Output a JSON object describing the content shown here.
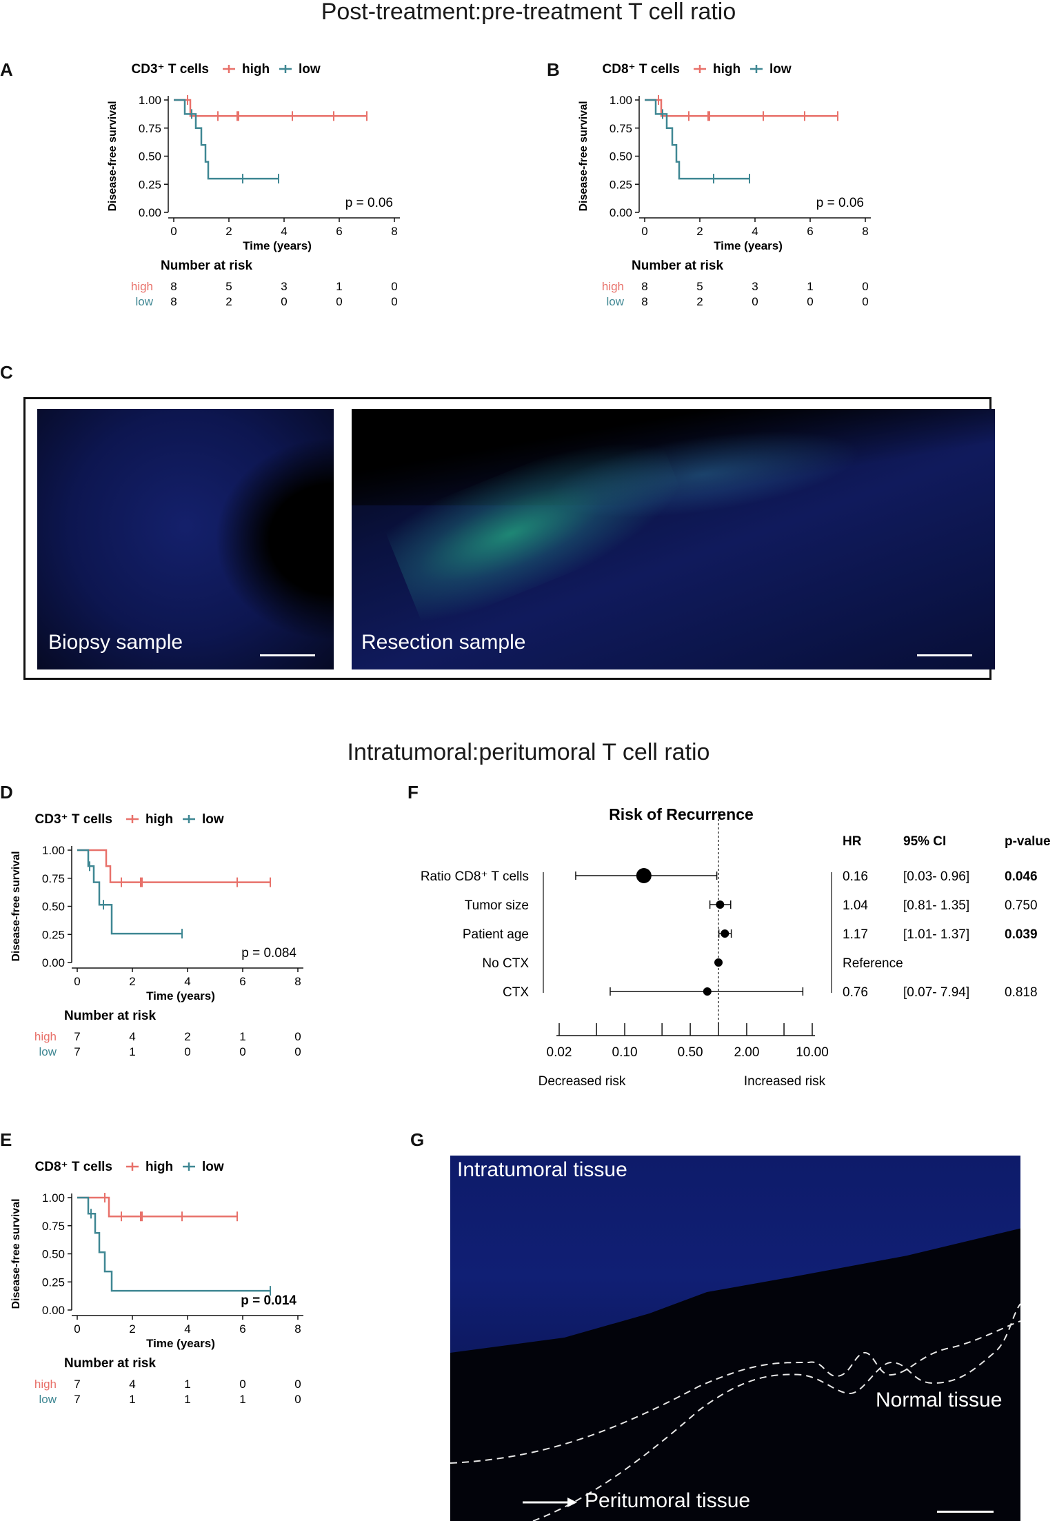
{
  "section_titles": {
    "top": "Post-treatment:pre-treatment T cell ratio",
    "middle": "Intratumoral:peritumoral T cell ratio"
  },
  "panel_labels": [
    "A",
    "B",
    "C",
    "D",
    "E",
    "F",
    "G"
  ],
  "colors": {
    "high": "#e8716a",
    "low": "#3f8793",
    "micro_bg": "#050814",
    "micro_blue": "#2a3fb8",
    "micro_green": "#2ee59a"
  },
  "micrographs": {
    "biopsy_label": "Biopsy sample",
    "resection_label": "Resection sample",
    "intratumoral_label": "Intratumoral tissue",
    "normal_label": "Normal tissue",
    "peritumoral_label": "Peritumoral tissue"
  },
  "chart_data": [
    {
      "id": "A",
      "type": "line",
      "legend_title": "CD3⁺ T cells",
      "legend_items": [
        "high",
        "low"
      ],
      "xlabel": "Time (years)",
      "ylabel": "Disease-free survival",
      "xlim": [
        0,
        8
      ],
      "ylim": [
        0,
        1
      ],
      "xticks": [
        "0",
        "2",
        "4",
        "6",
        "8"
      ],
      "yticks": [
        "0.00",
        "0.25",
        "0.50",
        "0.75",
        "1.00"
      ],
      "pvalue": "p = 0.06",
      "pvalue_bold": false,
      "series": [
        {
          "name": "high",
          "steps": [
            [
              0,
              1
            ],
            [
              0.6,
              1
            ],
            [
              0.6,
              0.857
            ],
            [
              7.0,
              0.857
            ]
          ],
          "censors": [
            [
              0.5,
              1
            ],
            [
              1.6,
              0.857
            ],
            [
              2.3,
              0.857
            ],
            [
              2.35,
              0.857
            ],
            [
              4.3,
              0.857
            ],
            [
              5.8,
              0.857
            ],
            [
              7.0,
              0.857
            ]
          ]
        },
        {
          "name": "low",
          "steps": [
            [
              0,
              1
            ],
            [
              0.4,
              1
            ],
            [
              0.4,
              0.875
            ],
            [
              0.8,
              0.875
            ],
            [
              0.8,
              0.75
            ],
            [
              1.0,
              0.75
            ],
            [
              1.0,
              0.6
            ],
            [
              1.15,
              0.6
            ],
            [
              1.15,
              0.45
            ],
            [
              1.25,
              0.45
            ],
            [
              1.25,
              0.3
            ],
            [
              3.8,
              0.3
            ]
          ],
          "censors": [
            [
              0.65,
              0.875
            ],
            [
              2.5,
              0.3
            ],
            [
              3.8,
              0.3
            ]
          ]
        }
      ],
      "risk_table": {
        "title": "Number at risk",
        "times": [
          0,
          2,
          4,
          6,
          8
        ],
        "rows": [
          {
            "name": "high",
            "values": [
              "8",
              "5",
              "3",
              "1",
              "0"
            ]
          },
          {
            "name": "low",
            "values": [
              "8",
              "2",
              "0",
              "0",
              "0"
            ]
          }
        ]
      }
    },
    {
      "id": "B",
      "type": "line",
      "legend_title": "CD8⁺ T cells",
      "legend_items": [
        "high",
        "low"
      ],
      "xlabel": "Time (years)",
      "ylabel": "Disease-free survival",
      "xlim": [
        0,
        8
      ],
      "ylim": [
        0,
        1
      ],
      "xticks": [
        "0",
        "2",
        "4",
        "6",
        "8"
      ],
      "yticks": [
        "0.00",
        "0.25",
        "0.50",
        "0.75",
        "1.00"
      ],
      "pvalue": "p = 0.06",
      "pvalue_bold": false,
      "series": [
        {
          "name": "high",
          "steps": [
            [
              0,
              1
            ],
            [
              0.6,
              1
            ],
            [
              0.6,
              0.857
            ],
            [
              7.0,
              0.857
            ]
          ],
          "censors": [
            [
              0.5,
              1
            ],
            [
              1.6,
              0.857
            ],
            [
              2.3,
              0.857
            ],
            [
              2.35,
              0.857
            ],
            [
              4.3,
              0.857
            ],
            [
              5.8,
              0.857
            ],
            [
              7.0,
              0.857
            ]
          ]
        },
        {
          "name": "low",
          "steps": [
            [
              0,
              1
            ],
            [
              0.4,
              1
            ],
            [
              0.4,
              0.875
            ],
            [
              0.8,
              0.875
            ],
            [
              0.8,
              0.75
            ],
            [
              1.0,
              0.75
            ],
            [
              1.0,
              0.6
            ],
            [
              1.15,
              0.6
            ],
            [
              1.15,
              0.45
            ],
            [
              1.25,
              0.45
            ],
            [
              1.25,
              0.3
            ],
            [
              3.8,
              0.3
            ]
          ],
          "censors": [
            [
              0.65,
              0.875
            ],
            [
              2.5,
              0.3
            ],
            [
              3.8,
              0.3
            ]
          ]
        }
      ],
      "risk_table": {
        "title": "Number at risk",
        "times": [
          0,
          2,
          4,
          6,
          8
        ],
        "rows": [
          {
            "name": "high",
            "values": [
              "8",
              "5",
              "3",
              "1",
              "0"
            ]
          },
          {
            "name": "low",
            "values": [
              "8",
              "2",
              "0",
              "0",
              "0"
            ]
          }
        ]
      }
    },
    {
      "id": "D",
      "type": "line",
      "legend_title": "CD3⁺ T cells",
      "legend_items": [
        "high",
        "low"
      ],
      "xlabel": "Time (years)",
      "ylabel": "Disease-free survival",
      "xlim": [
        0,
        8
      ],
      "ylim": [
        0,
        1
      ],
      "xticks": [
        "0",
        "2",
        "4",
        "6",
        "8"
      ],
      "yticks": [
        "0.00",
        "0.25",
        "0.50",
        "0.75",
        "1.00"
      ],
      "pvalue": "p = 0.084",
      "pvalue_bold": false,
      "series": [
        {
          "name": "high",
          "steps": [
            [
              0,
              1
            ],
            [
              1.05,
              1
            ],
            [
              1.05,
              0.857
            ],
            [
              1.2,
              0.857
            ],
            [
              1.2,
              0.714
            ],
            [
              7.0,
              0.714
            ]
          ],
          "censors": [
            [
              1.6,
              0.714
            ],
            [
              2.3,
              0.714
            ],
            [
              2.35,
              0.714
            ],
            [
              5.8,
              0.714
            ],
            [
              7.0,
              0.714
            ]
          ]
        },
        {
          "name": "low",
          "steps": [
            [
              0,
              1
            ],
            [
              0.4,
              1
            ],
            [
              0.4,
              0.857
            ],
            [
              0.6,
              0.857
            ],
            [
              0.6,
              0.714
            ],
            [
              0.8,
              0.714
            ],
            [
              0.8,
              0.514
            ],
            [
              1.25,
              0.514
            ],
            [
              1.25,
              0.257
            ],
            [
              3.8,
              0.257
            ]
          ],
          "censors": [
            [
              0.45,
              0.857
            ],
            [
              0.95,
              0.514
            ],
            [
              3.8,
              0.257
            ]
          ]
        }
      ],
      "risk_table": {
        "title": "Number at risk",
        "times": [
          0,
          2,
          4,
          6,
          8
        ],
        "rows": [
          {
            "name": "high",
            "values": [
              "7",
              "4",
              "2",
              "1",
              "0"
            ]
          },
          {
            "name": "low",
            "values": [
              "7",
              "1",
              "0",
              "0",
              "0"
            ]
          }
        ]
      }
    },
    {
      "id": "E",
      "type": "line",
      "legend_title": "CD8⁺ T cells",
      "legend_items": [
        "high",
        "low"
      ],
      "xlabel": "Time (years)",
      "ylabel": "Disease-free survival",
      "xlim": [
        0,
        8
      ],
      "ylim": [
        0,
        1
      ],
      "xticks": [
        "0",
        "2",
        "4",
        "6",
        "8"
      ],
      "yticks": [
        "0.00",
        "0.25",
        "0.50",
        "0.75",
        "1.00"
      ],
      "pvalue": "p = 0.014",
      "pvalue_bold": true,
      "series": [
        {
          "name": "high",
          "steps": [
            [
              0,
              1
            ],
            [
              1.15,
              1
            ],
            [
              1.15,
              0.833
            ],
            [
              5.8,
              0.833
            ]
          ],
          "censors": [
            [
              1.0,
              1
            ],
            [
              1.6,
              0.833
            ],
            [
              2.3,
              0.833
            ],
            [
              2.35,
              0.833
            ],
            [
              3.8,
              0.833
            ],
            [
              5.8,
              0.833
            ]
          ]
        },
        {
          "name": "low",
          "steps": [
            [
              0,
              1
            ],
            [
              0.4,
              1
            ],
            [
              0.4,
              0.857
            ],
            [
              0.65,
              0.857
            ],
            [
              0.65,
              0.686
            ],
            [
              0.8,
              0.686
            ],
            [
              0.8,
              0.514
            ],
            [
              1.0,
              0.514
            ],
            [
              1.0,
              0.343
            ],
            [
              1.25,
              0.343
            ],
            [
              1.25,
              0.171
            ],
            [
              7.0,
              0.171
            ]
          ],
          "censors": [
            [
              0.5,
              0.857
            ],
            [
              7.0,
              0.171
            ]
          ]
        }
      ],
      "risk_table": {
        "title": "Number at risk",
        "times": [
          0,
          2,
          4,
          6,
          8
        ],
        "rows": [
          {
            "name": "high",
            "values": [
              "7",
              "4",
              "1",
              "0",
              "0"
            ]
          },
          {
            "name": "low",
            "values": [
              "7",
              "1",
              "1",
              "1",
              "0"
            ]
          }
        ]
      }
    },
    {
      "id": "F",
      "type": "scatter",
      "title": "Risk of Recurrence",
      "x_scale": "log",
      "xticks": [
        0.02,
        0.1,
        0.5,
        2.0,
        10.0
      ],
      "xtick_labels": [
        "0.02",
        "0.10",
        "0.50",
        "2.00",
        "10.00"
      ],
      "xlim": [
        0.02,
        10
      ],
      "reference_line": 1,
      "xlabel_left": "Decreased risk",
      "xlabel_right": "Increased risk",
      "column_headers": {
        "hr": "HR",
        "ci": "95% CI",
        "p": "p-value"
      },
      "rows": [
        {
          "label": "Ratio CD8⁺ T cells",
          "hr": 0.16,
          "lo": 0.03,
          "hi": 0.96,
          "hr_text": "0.16",
          "ci_text": "[0.03- 0.96]",
          "p_text": "0.046",
          "p_bold": true,
          "big": true
        },
        {
          "label": "Tumor size",
          "hr": 1.04,
          "lo": 0.81,
          "hi": 1.35,
          "hr_text": "1.04",
          "ci_text": "[0.81- 1.35]",
          "p_text": "0.750",
          "p_bold": false,
          "big": false
        },
        {
          "label": "Patient age",
          "hr": 1.17,
          "lo": 1.01,
          "hi": 1.37,
          "hr_text": "1.17",
          "ci_text": "[1.01- 1.37]",
          "p_text": "0.039",
          "p_bold": true,
          "big": false
        },
        {
          "label": "No CTX",
          "hr": 1.0,
          "lo": null,
          "hi": null,
          "hr_text": "Reference",
          "ci_text": "",
          "p_text": "",
          "p_bold": false,
          "big": false
        },
        {
          "label": "CTX",
          "hr": 0.76,
          "lo": 0.07,
          "hi": 7.94,
          "hr_text": "0.76",
          "ci_text": "[0.07- 7.94]",
          "p_text": "0.818",
          "p_bold": false,
          "big": false
        }
      ]
    }
  ]
}
